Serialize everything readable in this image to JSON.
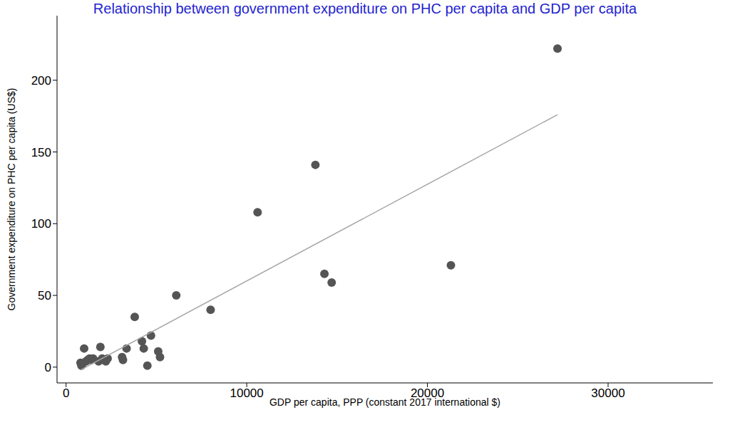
{
  "chart_data": {
    "type": "scatter",
    "title": "Relationship between government expenditure on PHC per capita and GDP per capita",
    "x_label": "GDP per capita, PPP (constant 2017 international $)",
    "y_label": "Government expenditure on PHC per capita (US$)",
    "xlim": [
      -500,
      35800
    ],
    "ylim": [
      -11,
      245
    ],
    "xticks": [
      0,
      10000,
      20000,
      30000
    ],
    "yticks": [
      0,
      50,
      100,
      150,
      200
    ],
    "grid": false,
    "series": [
      {
        "type": "scatter",
        "marker": "circle",
        "color": "#555555",
        "x": [
          800,
          850,
          900,
          1000,
          1100,
          1200,
          1300,
          1400,
          1500,
          1800,
          1900,
          2000,
          2100,
          2200,
          2300,
          3100,
          3150,
          3350,
          3800,
          4200,
          4300,
          4500,
          4700,
          5100,
          5200,
          6100,
          8000,
          10600,
          13800,
          14300,
          14700,
          21300,
          27200
        ],
        "values": [
          3,
          1,
          2,
          13,
          4,
          5,
          6,
          5,
          6,
          4,
          14,
          6,
          5,
          4,
          6,
          7,
          5,
          13,
          35,
          18,
          13,
          1,
          22,
          11,
          7,
          50,
          40,
          108,
          141,
          65,
          59,
          71,
          222
        ]
      },
      {
        "type": "line",
        "line_style": "solid",
        "color": "#a6a6a6",
        "x": [
          800,
          27200
        ],
        "values": [
          -2,
          176
        ]
      }
    ]
  }
}
